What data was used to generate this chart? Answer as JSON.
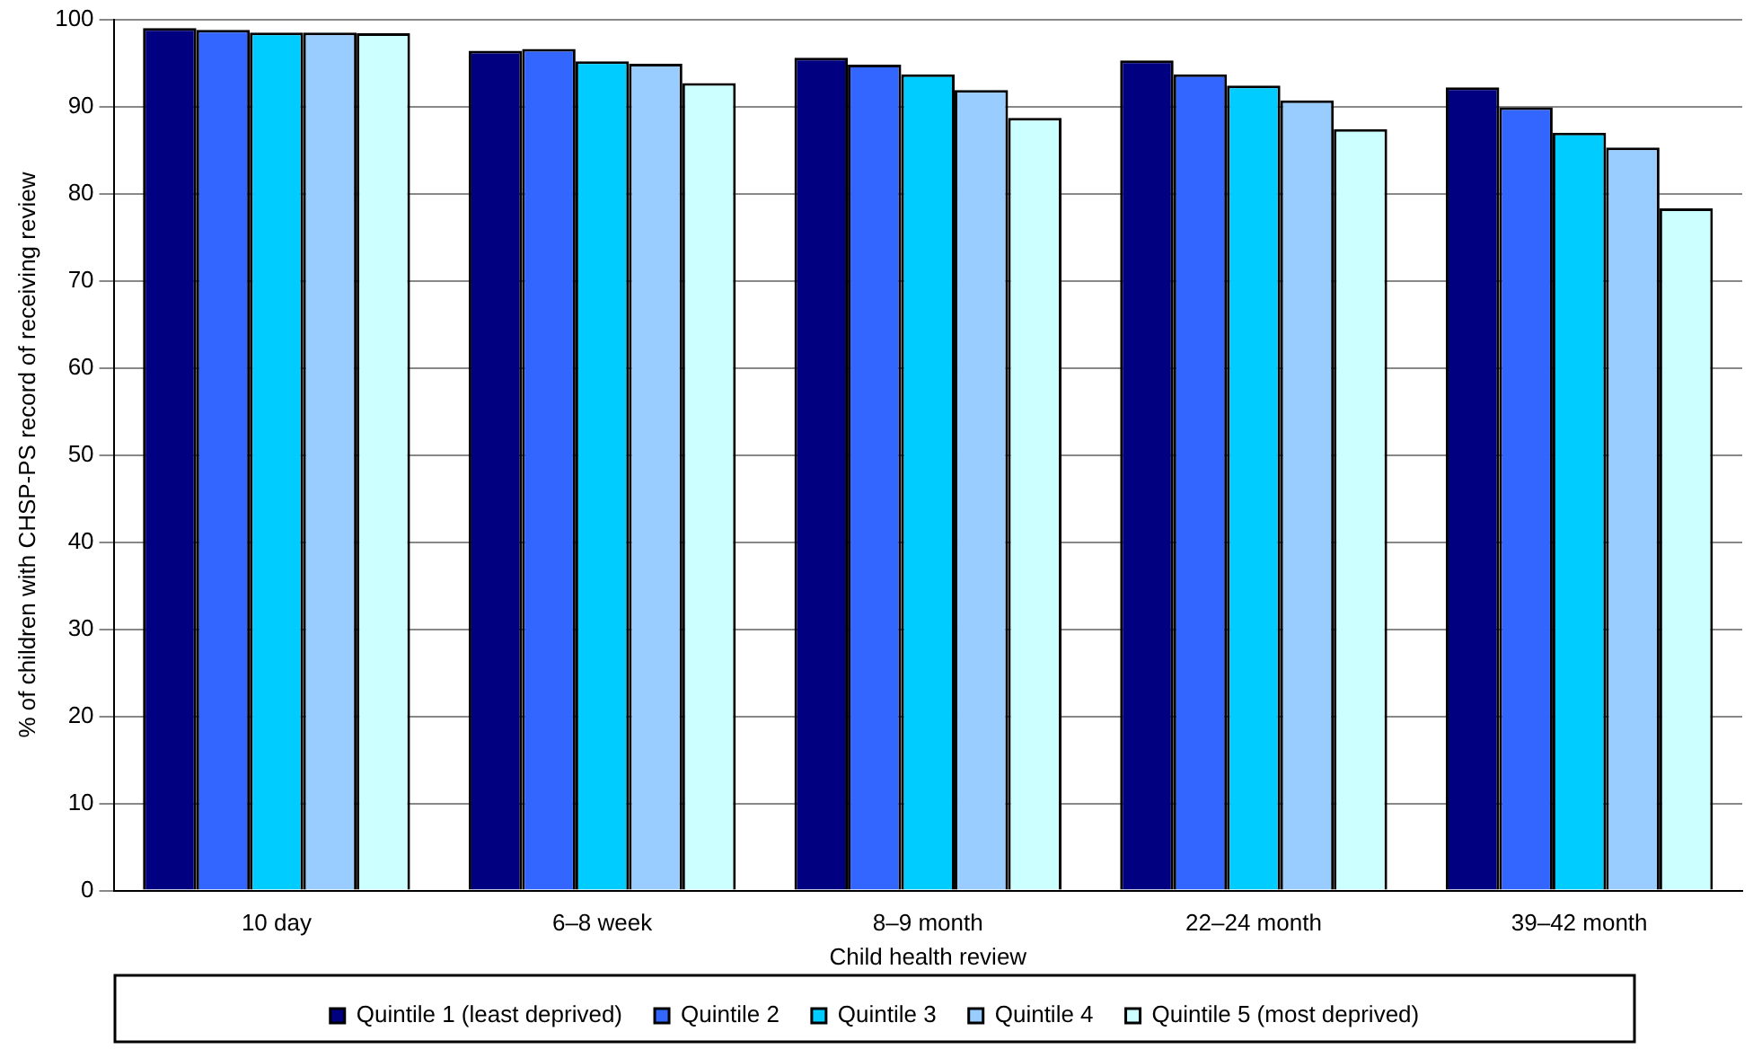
{
  "chart_data": {
    "type": "bar",
    "xlabel": "Child health review",
    "ylabel": "% of children with CHSP-PS record of receiving review",
    "categories": [
      "10 day",
      "6–8 week",
      "8–9 month",
      "22–24 month",
      "39–42 month"
    ],
    "series": [
      {
        "name": "Quintile 1 (least deprived)",
        "color": "#000080",
        "values": [
          99,
          96.4,
          95.6,
          95.3,
          92.2
        ]
      },
      {
        "name": "Quintile 2",
        "color": "#3366ff",
        "values": [
          98.8,
          96.6,
          94.8,
          93.7,
          89.9
        ]
      },
      {
        "name": "Quintile 3",
        "color": "#00ccff",
        "values": [
          98.5,
          95.2,
          93.7,
          92.4,
          87
        ]
      },
      {
        "name": "Quintile 4",
        "color": "#99ccff",
        "values": [
          98.5,
          94.9,
          91.9,
          90.7,
          85.3
        ]
      },
      {
        "name": "Quintile 5 (most deprived)",
        "color": "#ccffff",
        "values": [
          98.4,
          92.7,
          88.7,
          87.4,
          78.3
        ]
      }
    ],
    "ylim": [
      0,
      100
    ],
    "yticks": [
      0,
      10,
      20,
      30,
      40,
      50,
      60,
      70,
      80,
      90,
      100
    ],
    "grid": "y",
    "legend": "bottom"
  }
}
